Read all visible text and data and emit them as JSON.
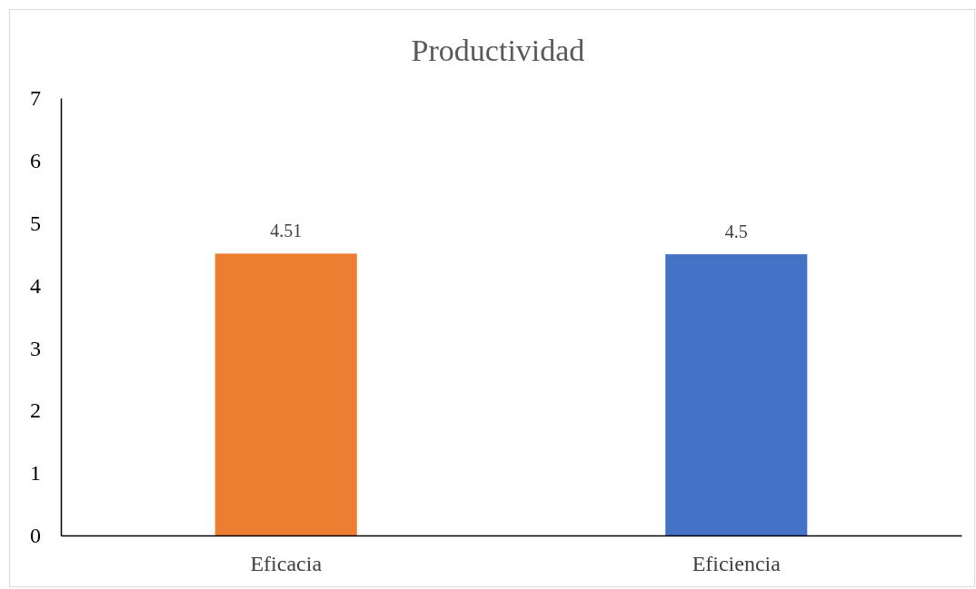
{
  "chart_data": {
    "type": "bar",
    "title": "Productividad",
    "categories": [
      "Eficacia",
      "Eficiencia"
    ],
    "values": [
      4.51,
      4.5
    ],
    "colors": [
      "#ed7d31",
      "#4472c4"
    ],
    "ylim": [
      0,
      7
    ],
    "yticks": [
      0,
      1,
      2,
      3,
      4,
      5,
      6,
      7
    ],
    "data_labels": true,
    "grid": false
  }
}
